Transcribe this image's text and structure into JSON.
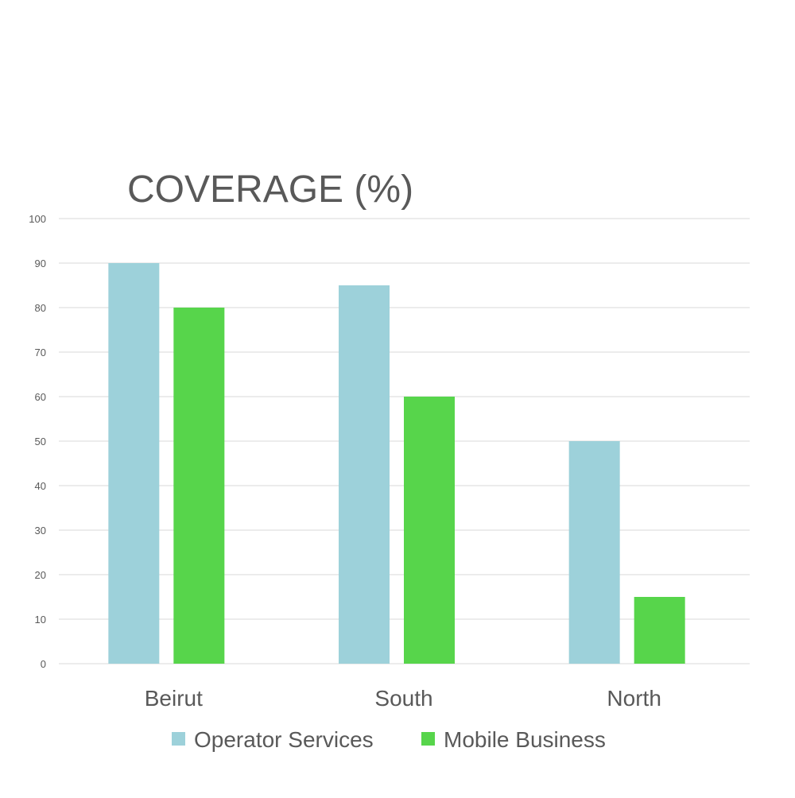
{
  "chart_data": {
    "type": "bar",
    "title": "COVERAGE (%)",
    "xlabel": "",
    "ylabel": "",
    "categories": [
      "Beirut",
      "South",
      "North"
    ],
    "series": [
      {
        "name": "Operator Services",
        "values": [
          90,
          85,
          50
        ],
        "color": "#9DD1DA"
      },
      {
        "name": "Mobile Business",
        "values": [
          80,
          60,
          15
        ],
        "color": "#57D54B"
      }
    ],
    "ylim": [
      0,
      100
    ],
    "yticks": [
      "0",
      "10",
      "20",
      "30",
      "40",
      "50",
      "60",
      "70",
      "80",
      "90",
      "100"
    ],
    "grid": true,
    "legend_position": "bottom",
    "colors": {
      "grid": "#D9D9D9",
      "tick_text": "#595959",
      "title_text": "#595959"
    }
  }
}
